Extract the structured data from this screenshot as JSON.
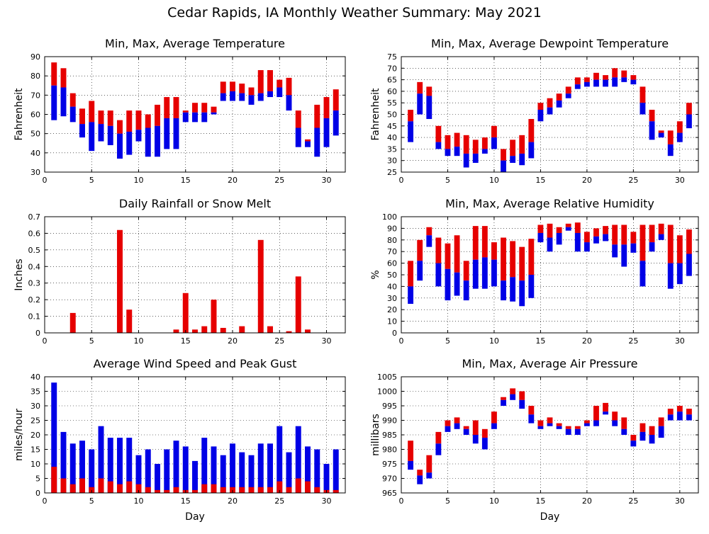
{
  "page": {
    "title": "Cedar Rapids, IA Monthly Weather Summary: May 2021"
  },
  "colors": {
    "upper": "#e60000",
    "lower": "#0000e6"
  },
  "chart_data": [
    {
      "id": "temperature",
      "type": "floating-bar",
      "title": "Min, Max, Average Temperature",
      "ylabel": "Fahrenheit",
      "xlabel": "",
      "xlim": [
        0,
        32
      ],
      "xticks": [
        0,
        5,
        10,
        15,
        20,
        25,
        30
      ],
      "ylim": [
        30,
        90
      ],
      "yticks": [
        30,
        40,
        50,
        60,
        70,
        80,
        90
      ],
      "x": [
        1,
        2,
        3,
        4,
        5,
        6,
        7,
        8,
        9,
        10,
        11,
        12,
        13,
        14,
        15,
        16,
        17,
        18,
        19,
        20,
        21,
        22,
        23,
        24,
        25,
        26,
        27,
        28,
        29,
        30,
        31
      ],
      "min": [
        57,
        59,
        56,
        48,
        41,
        46,
        44,
        37,
        39,
        46,
        38,
        38,
        42,
        42,
        56,
        56,
        56,
        60,
        67,
        67,
        67,
        65,
        67,
        69,
        69,
        62,
        43,
        43,
        38,
        43,
        49
      ],
      "avg": [
        75,
        74,
        64,
        55,
        56,
        55,
        54,
        50,
        51,
        52,
        53,
        54,
        58,
        58,
        61,
        61,
        61,
        61,
        71,
        72,
        71,
        70,
        71,
        72,
        74,
        70,
        53,
        46,
        53,
        58,
        62
      ],
      "max": [
        87,
        84,
        71,
        63,
        67,
        62,
        62,
        57,
        62,
        62,
        60,
        65,
        69,
        69,
        62,
        66,
        66,
        64,
        77,
        77,
        76,
        74,
        83,
        83,
        78,
        79,
        62,
        47,
        65,
        69,
        73
      ],
      "grid": true
    },
    {
      "id": "dewpoint",
      "type": "floating-bar",
      "title": "Min, Max, Average Dewpoint Temperature",
      "ylabel": "Fahrenheit",
      "xlabel": "",
      "xlim": [
        0,
        32
      ],
      "xticks": [
        0,
        5,
        10,
        15,
        20,
        25,
        30
      ],
      "ylim": [
        25,
        75
      ],
      "yticks": [
        25,
        30,
        35,
        40,
        45,
        50,
        55,
        60,
        65,
        70,
        75
      ],
      "x": [
        1,
        2,
        3,
        4,
        5,
        6,
        7,
        8,
        9,
        10,
        11,
        12,
        13,
        14,
        15,
        16,
        17,
        18,
        19,
        20,
        21,
        22,
        23,
        24,
        25,
        26,
        27,
        28,
        29,
        30,
        31
      ],
      "min": [
        38,
        50,
        48,
        35,
        32,
        32,
        27,
        29,
        33,
        35,
        25,
        29,
        28,
        31,
        47,
        50,
        53,
        57,
        61,
        62,
        62,
        62,
        62,
        64,
        63,
        50,
        39,
        40,
        32,
        38,
        44
      ],
      "avg": [
        47,
        59,
        58,
        38,
        35,
        36,
        33,
        33,
        35,
        40,
        30,
        32,
        33,
        38,
        52,
        53,
        56,
        59,
        63,
        64,
        65,
        65,
        66,
        66,
        65,
        55,
        47,
        42,
        37,
        42,
        50
      ],
      "max": [
        52,
        64,
        62,
        45,
        41,
        42,
        41,
        39,
        40,
        45,
        35,
        39,
        41,
        48,
        55,
        57,
        59,
        62,
        66,
        66,
        68,
        67,
        70,
        69,
        67,
        62,
        52,
        43,
        43,
        47,
        55
      ],
      "grid": true
    },
    {
      "id": "rainfall",
      "type": "bar",
      "title": "Daily Rainfall or Snow Melt",
      "ylabel": "Inches",
      "xlabel": "",
      "xlim": [
        0,
        32
      ],
      "xticks": [
        0,
        5,
        10,
        15,
        20,
        25,
        30
      ],
      "ylim": [
        0,
        0.7
      ],
      "yticks": [
        0,
        0.1,
        0.2,
        0.3,
        0.4,
        0.5,
        0.6,
        0.7
      ],
      "x": [
        1,
        2,
        3,
        4,
        5,
        6,
        7,
        8,
        9,
        10,
        11,
        12,
        13,
        14,
        15,
        16,
        17,
        18,
        19,
        20,
        21,
        22,
        23,
        24,
        25,
        26,
        27,
        28,
        29,
        30,
        31
      ],
      "values": [
        0,
        0,
        0.12,
        0,
        0,
        0,
        0,
        0.62,
        0.14,
        0,
        0,
        0,
        0,
        0.02,
        0.24,
        0.02,
        0.04,
        0.2,
        0.03,
        0,
        0.04,
        0,
        0.56,
        0.04,
        0,
        0.01,
        0.34,
        0.02,
        0,
        0,
        0
      ],
      "grid": true
    },
    {
      "id": "humidity",
      "type": "floating-bar",
      "title": "Min, Max, Average Relative Humidity",
      "ylabel": "%",
      "xlabel": "",
      "xlim": [
        0,
        32
      ],
      "xticks": [
        0,
        5,
        10,
        15,
        20,
        25,
        30
      ],
      "ylim": [
        0,
        100
      ],
      "yticks": [
        0,
        10,
        20,
        30,
        40,
        50,
        60,
        70,
        80,
        90,
        100
      ],
      "x": [
        1,
        2,
        3,
        4,
        5,
        6,
        7,
        8,
        9,
        10,
        11,
        12,
        13,
        14,
        15,
        16,
        17,
        18,
        19,
        20,
        21,
        22,
        23,
        24,
        25,
        26,
        27,
        28,
        29,
        30,
        31
      ],
      "min": [
        25,
        45,
        74,
        40,
        28,
        32,
        28,
        38,
        38,
        40,
        28,
        27,
        23,
        30,
        78,
        70,
        76,
        88,
        70,
        70,
        77,
        79,
        65,
        57,
        69,
        40,
        70,
        80,
        38,
        42,
        49
      ],
      "avg": [
        40,
        62,
        84,
        60,
        55,
        52,
        45,
        63,
        65,
        63,
        45,
        48,
        45,
        50,
        86,
        82,
        86,
        91,
        86,
        78,
        83,
        85,
        76,
        76,
        77,
        62,
        78,
        85,
        60,
        60,
        68
      ],
      "max": [
        62,
        80,
        91,
        82,
        77,
        84,
        62,
        92,
        92,
        78,
        82,
        79,
        74,
        81,
        93,
        94,
        91,
        94,
        95,
        87,
        90,
        92,
        93,
        93,
        87,
        93,
        93,
        94,
        93,
        84,
        89
      ],
      "grid": true
    },
    {
      "id": "wind",
      "type": "overlaid-bar",
      "title": "Average Wind Speed and Peak Gust",
      "ylabel": "miles/hour",
      "xlabel": "Day",
      "xlim": [
        0,
        32
      ],
      "xticks": [
        0,
        5,
        10,
        15,
        20,
        25,
        30
      ],
      "ylim": [
        0,
        40
      ],
      "yticks": [
        0,
        5,
        10,
        15,
        20,
        25,
        30,
        35,
        40
      ],
      "x": [
        1,
        2,
        3,
        4,
        5,
        6,
        7,
        8,
        9,
        10,
        11,
        12,
        13,
        14,
        15,
        16,
        17,
        18,
        19,
        20,
        21,
        22,
        23,
        24,
        25,
        26,
        27,
        28,
        29,
        30,
        31
      ],
      "gust": [
        38,
        21,
        17,
        18,
        15,
        23,
        19,
        19,
        19,
        13,
        15,
        10,
        15,
        18,
        16,
        11,
        19,
        16,
        13,
        17,
        14,
        13,
        17,
        17,
        23,
        14,
        23,
        16,
        15,
        10,
        15
      ],
      "average": [
        9,
        5,
        3,
        5,
        2,
        5,
        4,
        3,
        4,
        3,
        2,
        1,
        1,
        2,
        1,
        1,
        3,
        3,
        2,
        2,
        2,
        2,
        2,
        2,
        4,
        2,
        5,
        4,
        2,
        1,
        1
      ],
      "grid": true
    },
    {
      "id": "pressure",
      "type": "floating-bar",
      "title": "Min, Max, Average Air Pressure",
      "ylabel": "millibars",
      "xlabel": "Day",
      "xlim": [
        0,
        32
      ],
      "xticks": [
        0,
        5,
        10,
        15,
        20,
        25,
        30
      ],
      "ylim": [
        965,
        1005
      ],
      "yticks": [
        965,
        970,
        975,
        980,
        985,
        990,
        995,
        1000,
        1005
      ],
      "x": [
        1,
        2,
        3,
        4,
        5,
        6,
        7,
        8,
        9,
        10,
        11,
        12,
        13,
        14,
        15,
        16,
        17,
        18,
        19,
        20,
        21,
        22,
        23,
        24,
        25,
        26,
        27,
        28,
        29,
        30,
        31
      ],
      "min": [
        973,
        968,
        970,
        978,
        986,
        987,
        985,
        982,
        980,
        987,
        995,
        997,
        994,
        989,
        987,
        988,
        987,
        985,
        985,
        988,
        988,
        992,
        988,
        985,
        981,
        983,
        982,
        984,
        990,
        990,
        990
      ],
      "avg": [
        976,
        971,
        972,
        982,
        988,
        989,
        987,
        985,
        984,
        989,
        997,
        999,
        997,
        992,
        988,
        989,
        988,
        987,
        987,
        989,
        990,
        993,
        990,
        987,
        983,
        986,
        985,
        988,
        992,
        993,
        992
      ],
      "max": [
        983,
        973,
        978,
        986,
        990,
        991,
        988,
        990,
        987,
        993,
        998,
        1001,
        1000,
        995,
        990,
        991,
        989,
        988,
        988,
        990,
        995,
        996,
        993,
        991,
        985,
        989,
        988,
        991,
        994,
        995,
        994
      ],
      "grid": true
    }
  ]
}
